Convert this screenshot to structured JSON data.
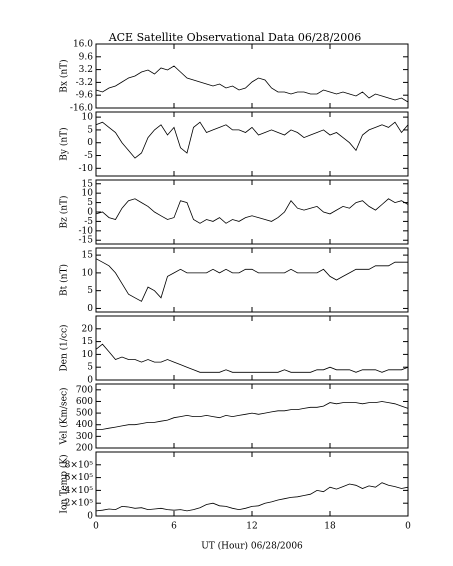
{
  "chart_data": [
    {
      "type": "line",
      "title": "ACE Satellite Observational Data   06/28/2006",
      "ylabel": "Bx (nT)",
      "color": "#000000",
      "x": [
        0,
        0.5,
        1,
        1.5,
        2,
        2.5,
        3,
        3.5,
        4,
        4.5,
        5,
        5.5,
        6,
        6.5,
        7,
        7.5,
        8,
        8.5,
        9,
        9.5,
        10,
        10.5,
        11,
        11.5,
        12,
        12.5,
        13,
        13.5,
        14,
        14.5,
        15,
        15.5,
        16,
        16.5,
        17,
        17.5,
        18,
        18.5,
        19,
        19.5,
        20,
        20.5,
        21,
        21.5,
        22,
        22.5,
        23,
        23.5,
        24
      ],
      "values": [
        -7,
        -8,
        -6,
        -5,
        -3,
        -1,
        0,
        2,
        3,
        1,
        4,
        3,
        5,
        2,
        -1,
        -2,
        -3,
        -4,
        -5,
        -4,
        -6,
        -5,
        -7,
        -6,
        -3,
        -1,
        -2,
        -6,
        -8,
        -8,
        -9,
        -8,
        -8,
        -9,
        -9,
        -7,
        -8,
        -9,
        -8,
        -9,
        -10,
        -8,
        -11,
        -9,
        -10,
        -11,
        -12,
        -11,
        -13
      ],
      "xlim": [
        0,
        24
      ],
      "ylim": [
        -16,
        16
      ],
      "yticks": [
        {
          "value": 16,
          "label": "16.0"
        },
        9.6,
        3.2,
        -3.2,
        -9.6,
        {
          "value": -16,
          "label": "-16.0"
        }
      ]
    },
    {
      "type": "line",
      "ylabel": "By (nT)",
      "color": "#000000",
      "x": [
        0,
        0.5,
        1,
        1.5,
        2,
        2.5,
        3,
        3.5,
        4,
        4.5,
        5,
        5.5,
        6,
        6.5,
        7,
        7.5,
        8,
        8.5,
        9,
        9.5,
        10,
        10.5,
        11,
        11.5,
        12,
        12.5,
        13,
        13.5,
        14,
        14.5,
        15,
        15.5,
        16,
        16.5,
        17,
        17.5,
        18,
        18.5,
        19,
        19.5,
        20,
        20.5,
        21,
        21.5,
        22,
        22.5,
        23,
        23.5,
        24
      ],
      "values": [
        7,
        8,
        6,
        4,
        0,
        -3,
        -6,
        -4,
        2,
        5,
        7,
        3,
        6,
        -2,
        -4,
        6,
        8,
        4,
        5,
        6,
        7,
        5,
        5,
        4,
        6,
        3,
        4,
        5,
        4,
        3,
        5,
        4,
        2,
        3,
        4,
        5,
        3,
        4,
        2,
        0,
        -3,
        3,
        5,
        6,
        7,
        6,
        8,
        4,
        7
      ],
      "xlim": [
        0,
        24
      ],
      "ylim": [
        -13,
        12
      ],
      "yticks": [
        10,
        5,
        0,
        -5,
        -10
      ]
    },
    {
      "type": "line",
      "ylabel": "Bz (nT)",
      "color": "#000000",
      "x": [
        0,
        0.5,
        1,
        1.5,
        2,
        2.5,
        3,
        3.5,
        4,
        4.5,
        5,
        5.5,
        6,
        6.5,
        7,
        7.5,
        8,
        8.5,
        9,
        9.5,
        10,
        10.5,
        11,
        11.5,
        12,
        12.5,
        13,
        13.5,
        14,
        14.5,
        15,
        15.5,
        16,
        16.5,
        17,
        17.5,
        18,
        18.5,
        19,
        19.5,
        20,
        20.5,
        21,
        21.5,
        22,
        22.5,
        23,
        23.5,
        24
      ],
      "values": [
        -1,
        0,
        -3,
        -4,
        2,
        6,
        7,
        5,
        3,
        0,
        -2,
        -4,
        -3,
        6,
        5,
        -4,
        -6,
        -4,
        -5,
        -3,
        -6,
        -4,
        -5,
        -3,
        -2,
        -3,
        -4,
        -5,
        -3,
        0,
        6,
        2,
        1,
        2,
        3,
        0,
        -1,
        1,
        3,
        2,
        5,
        6,
        3,
        1,
        4,
        7,
        5,
        6,
        4
      ],
      "xlim": [
        0,
        24
      ],
      "ylim": [
        -17,
        17
      ],
      "yticks": [
        15,
        10,
        5,
        0,
        -5,
        -10,
        -15
      ]
    },
    {
      "type": "line",
      "ylabel": "Bt (nT)",
      "color": "#000000",
      "x": [
        0,
        0.5,
        1,
        1.5,
        2,
        2.5,
        3,
        3.5,
        4,
        4.5,
        5,
        5.5,
        6,
        6.5,
        7,
        7.5,
        8,
        8.5,
        9,
        9.5,
        10,
        10.5,
        11,
        11.5,
        12,
        12.5,
        13,
        13.5,
        14,
        14.5,
        15,
        15.5,
        16,
        16.5,
        17,
        17.5,
        18,
        18.5,
        19,
        19.5,
        20,
        20.5,
        21,
        21.5,
        22,
        22.5,
        23,
        23.5,
        24
      ],
      "values": [
        14,
        13,
        12,
        10,
        7,
        4,
        3,
        2,
        6,
        5,
        3,
        9,
        10,
        11,
        10,
        10,
        10,
        10,
        11,
        10,
        11,
        10,
        10,
        11,
        11,
        10,
        10,
        10,
        10,
        10,
        11,
        10,
        10,
        10,
        10,
        11,
        9,
        8,
        9,
        10,
        11,
        11,
        11,
        12,
        12,
        12,
        13,
        13,
        13
      ],
      "xlim": [
        0,
        24
      ],
      "ylim": [
        -1,
        17
      ],
      "yticks": [
        0,
        5,
        10,
        15
      ]
    },
    {
      "type": "line",
      "ylabel": "Den (1/cc)",
      "color": "#000000",
      "x": [
        0,
        0.5,
        1,
        1.5,
        2,
        2.5,
        3,
        3.5,
        4,
        4.5,
        5,
        5.5,
        6,
        6.5,
        7,
        7.5,
        8,
        8.5,
        9,
        9.5,
        10,
        10.5,
        11,
        11.5,
        12,
        12.5,
        13,
        13.5,
        14,
        14.5,
        15,
        15.5,
        16,
        16.5,
        17,
        17.5,
        18,
        18.5,
        19,
        19.5,
        20,
        20.5,
        21,
        21.5,
        22,
        22.5,
        23,
        23.5,
        24
      ],
      "values": [
        12,
        14,
        11,
        8,
        9,
        8,
        8,
        7,
        8,
        7,
        7,
        8,
        7,
        6,
        5,
        4,
        3,
        3,
        3,
        3,
        4,
        3,
        3,
        3,
        3,
        3,
        3,
        3,
        3,
        4,
        3,
        3,
        3,
        3,
        4,
        4,
        5,
        4,
        4,
        4,
        3,
        4,
        4,
        4,
        3,
        4,
        4,
        4,
        5
      ],
      "xlim": [
        0,
        24
      ],
      "ylim": [
        0,
        25
      ],
      "yticks": [
        0,
        5,
        10,
        15,
        20
      ]
    },
    {
      "type": "line",
      "ylabel": "Vel (Km/sec)",
      "color": "#000000",
      "x": [
        0,
        0.5,
        1,
        1.5,
        2,
        2.5,
        3,
        3.5,
        4,
        4.5,
        5,
        5.5,
        6,
        6.5,
        7,
        7.5,
        8,
        8.5,
        9,
        9.5,
        10,
        10.5,
        11,
        11.5,
        12,
        12.5,
        13,
        13.5,
        14,
        14.5,
        15,
        15.5,
        16,
        16.5,
        17,
        17.5,
        18,
        18.5,
        19,
        19.5,
        20,
        20.5,
        21,
        21.5,
        22,
        22.5,
        23,
        23.5,
        24
      ],
      "values": [
        360,
        360,
        370,
        380,
        390,
        400,
        400,
        410,
        420,
        420,
        430,
        440,
        460,
        470,
        480,
        470,
        470,
        480,
        470,
        460,
        480,
        470,
        480,
        490,
        500,
        490,
        500,
        510,
        520,
        520,
        530,
        530,
        540,
        550,
        550,
        560,
        590,
        580,
        590,
        590,
        590,
        580,
        590,
        590,
        600,
        590,
        580,
        560,
        540
      ],
      "xlim": [
        0,
        24
      ],
      "ylim": [
        200,
        750
      ],
      "yticks": [
        200,
        300,
        400,
        500,
        600,
        700
      ]
    },
    {
      "type": "line",
      "ylabel": "Ion Temp (K)",
      "xlabel": "UT (Hour)   06/28/2006",
      "color": "#000000",
      "x": [
        0,
        0.5,
        1,
        1.5,
        2,
        2.5,
        3,
        3.5,
        4,
        4.5,
        5,
        5.5,
        6,
        6.5,
        7,
        7.5,
        8,
        8.5,
        9,
        9.5,
        10,
        10.5,
        11,
        11.5,
        12,
        12.5,
        13,
        13.5,
        14,
        14.5,
        15,
        15.5,
        16,
        16.5,
        17,
        17.5,
        18,
        18.5,
        19,
        19.5,
        20,
        20.5,
        21,
        21.5,
        22,
        22.5,
        23,
        23.5,
        24
      ],
      "values": [
        80000,
        90000,
        110000,
        100000,
        150000,
        140000,
        120000,
        130000,
        100000,
        110000,
        120000,
        100000,
        90000,
        100000,
        80000,
        100000,
        130000,
        180000,
        200000,
        160000,
        150000,
        120000,
        100000,
        120000,
        150000,
        160000,
        200000,
        220000,
        250000,
        270000,
        290000,
        300000,
        320000,
        340000,
        400000,
        380000,
        450000,
        420000,
        460000,
        500000,
        480000,
        430000,
        470000,
        450000,
        520000,
        480000,
        460000,
        430000,
        450000
      ],
      "xlim": [
        0,
        24
      ],
      "ylim": [
        0,
        1000000
      ],
      "yticks": [
        0,
        {
          "value": 200000,
          "label": "2×10⁵"
        },
        {
          "value": 400000,
          "label": "4×10⁵"
        },
        {
          "value": 600000,
          "label": "6×10⁵"
        },
        {
          "value": 800000,
          "label": "8×10⁵"
        }
      ],
      "xticks": [
        0,
        6,
        12,
        18,
        {
          "value": 24,
          "label": "0"
        }
      ]
    }
  ]
}
